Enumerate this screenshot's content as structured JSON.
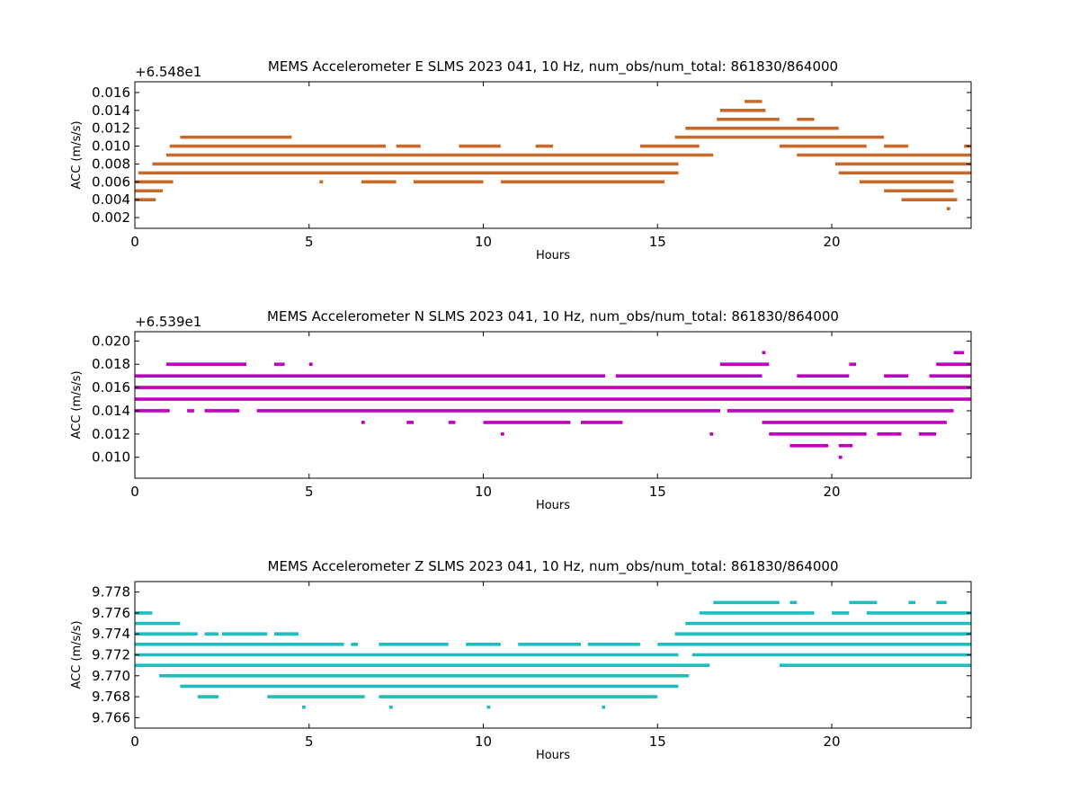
{
  "chart_data": [
    {
      "type": "scatter",
      "title": "MEMS Accelerometer E SLMS 2023 041, 10 Hz, num_obs/num_total: 861830/864000",
      "xlabel": "Hours",
      "ylabel": "ACC (m/s/s)",
      "offset_label": "+6.548e1",
      "color": "#c8692b",
      "xlim": [
        0,
        24
      ],
      "ylim": [
        0.0008,
        0.0172
      ],
      "xticks": [
        0,
        5,
        10,
        15,
        20
      ],
      "xtick_labels": [
        "0",
        "5",
        "10",
        "15",
        "20"
      ],
      "yticks": [
        0.002,
        0.004,
        0.006,
        0.008,
        0.01,
        0.012,
        0.014,
        0.016
      ],
      "ytick_labels": [
        "0.002",
        "0.004",
        "0.006",
        "0.008",
        "0.010",
        "0.012",
        "0.014",
        "0.016"
      ],
      "series": [
        {
          "y": 0.015,
          "segments": [
            [
              17.5,
              18.0
            ]
          ]
        },
        {
          "y": 0.014,
          "segments": [
            [
              16.8,
              18.1
            ]
          ]
        },
        {
          "y": 0.013,
          "segments": [
            [
              16.7,
              18.5
            ],
            [
              19.0,
              19.5
            ]
          ]
        },
        {
          "y": 0.012,
          "segments": [
            [
              15.8,
              20.2
            ]
          ]
        },
        {
          "y": 0.011,
          "segments": [
            [
              1.3,
              4.5
            ],
            [
              15.5,
              21.5
            ]
          ]
        },
        {
          "y": 0.01,
          "segments": [
            [
              1.0,
              7.2
            ],
            [
              7.5,
              8.2
            ],
            [
              9.3,
              10.5
            ],
            [
              11.5,
              12.0
            ],
            [
              14.5,
              16.2
            ],
            [
              18.5,
              21.0
            ],
            [
              21.5,
              22.2
            ],
            [
              23.8,
              24.0
            ]
          ]
        },
        {
          "y": 0.009,
          "segments": [
            [
              0.9,
              16.6
            ],
            [
              19.0,
              24.0
            ]
          ]
        },
        {
          "y": 0.008,
          "segments": [
            [
              0.5,
              15.6
            ],
            [
              20.1,
              24.0
            ]
          ]
        },
        {
          "y": 0.007,
          "segments": [
            [
              0.1,
              15.6
            ],
            [
              20.2,
              24.0
            ]
          ]
        },
        {
          "y": 0.006,
          "segments": [
            [
              0.0,
              1.1
            ],
            [
              5.3,
              5.4
            ],
            [
              6.5,
              7.5
            ],
            [
              8.0,
              10.0
            ],
            [
              10.5,
              15.2
            ],
            [
              20.8,
              23.5
            ]
          ]
        },
        {
          "y": 0.005,
          "segments": [
            [
              0.0,
              0.8
            ],
            [
              21.5,
              23.5
            ]
          ]
        },
        {
          "y": 0.004,
          "segments": [
            [
              0.0,
              0.6
            ],
            [
              22.0,
              23.6
            ]
          ]
        },
        {
          "y": 0.003,
          "segments": [
            [
              23.3,
              23.4
            ]
          ]
        }
      ]
    },
    {
      "type": "scatter",
      "title": "MEMS Accelerometer N SLMS 2023 041, 10 Hz, num_obs/num_total: 861830/864000",
      "xlabel": "Hours",
      "ylabel": "ACC (m/s/s)",
      "offset_label": "+6.539e1",
      "color": "#bf00bf",
      "xlim": [
        0,
        24
      ],
      "ylim": [
        0.0082,
        0.0208
      ],
      "xticks": [
        0,
        5,
        10,
        15,
        20
      ],
      "xtick_labels": [
        "0",
        "5",
        "10",
        "15",
        "20"
      ],
      "yticks": [
        0.01,
        0.012,
        0.014,
        0.016,
        0.018,
        0.02
      ],
      "ytick_labels": [
        "0.010",
        "0.012",
        "0.014",
        "0.016",
        "0.018",
        "0.020"
      ],
      "series": [
        {
          "y": 0.019,
          "segments": [
            [
              18.0,
              18.1
            ],
            [
              23.5,
              23.8
            ]
          ]
        },
        {
          "y": 0.018,
          "segments": [
            [
              0.9,
              3.2
            ],
            [
              4.0,
              4.3
            ],
            [
              5.0,
              5.1
            ],
            [
              16.8,
              18.2
            ],
            [
              20.5,
              20.7
            ],
            [
              23.0,
              24.0
            ]
          ]
        },
        {
          "y": 0.017,
          "segments": [
            [
              0.0,
              13.5
            ],
            [
              13.8,
              18.0
            ],
            [
              19.0,
              20.5
            ],
            [
              21.5,
              22.2
            ],
            [
              22.8,
              24.0
            ]
          ]
        },
        {
          "y": 0.016,
          "segments": [
            [
              0.0,
              24.0
            ]
          ]
        },
        {
          "y": 0.015,
          "segments": [
            [
              0.0,
              24.0
            ]
          ]
        },
        {
          "y": 0.014,
          "segments": [
            [
              0.0,
              1.0
            ],
            [
              1.5,
              1.7
            ],
            [
              2.0,
              3.0
            ],
            [
              3.5,
              16.8
            ],
            [
              17.0,
              23.5
            ]
          ]
        },
        {
          "y": 0.013,
          "segments": [
            [
              6.5,
              6.6
            ],
            [
              7.8,
              8.0
            ],
            [
              9.0,
              9.2
            ],
            [
              10.0,
              12.5
            ],
            [
              12.8,
              14.0
            ],
            [
              18.0,
              23.3
            ]
          ]
        },
        {
          "y": 0.012,
          "segments": [
            [
              10.5,
              10.6
            ],
            [
              16.5,
              16.6
            ],
            [
              18.2,
              21.0
            ],
            [
              21.3,
              22.0
            ],
            [
              22.5,
              23.0
            ]
          ]
        },
        {
          "y": 0.011,
          "segments": [
            [
              18.8,
              19.9
            ],
            [
              20.2,
              20.6
            ]
          ]
        },
        {
          "y": 0.01,
          "segments": [
            [
              20.2,
              20.3
            ]
          ]
        }
      ]
    },
    {
      "type": "scatter",
      "title": "MEMS Accelerometer Z SLMS 2023 041, 10 Hz, num_obs/num_total: 861830/864000",
      "xlabel": "Hours",
      "ylabel": "ACC (m/s/s)",
      "offset_label": "",
      "color": "#1fbdbd",
      "xlim": [
        0,
        24
      ],
      "ylim": [
        9.765,
        9.779
      ],
      "xticks": [
        0,
        5,
        10,
        15,
        20
      ],
      "xtick_labels": [
        "0",
        "5",
        "10",
        "15",
        "20"
      ],
      "yticks": [
        9.766,
        9.768,
        9.77,
        9.772,
        9.774,
        9.776,
        9.778
      ],
      "ytick_labels": [
        "9.766",
        "9.768",
        "9.770",
        "9.772",
        "9.774",
        "9.776",
        "9.778"
      ],
      "series": [
        {
          "y": 9.777,
          "segments": [
            [
              16.6,
              18.5
            ],
            [
              18.8,
              19.0
            ],
            [
              20.5,
              21.3
            ],
            [
              22.2,
              22.4
            ],
            [
              23.0,
              23.3
            ]
          ]
        },
        {
          "y": 9.776,
          "segments": [
            [
              0.0,
              0.5
            ],
            [
              16.2,
              19.5
            ],
            [
              20.0,
              20.5
            ],
            [
              21.0,
              24.0
            ]
          ]
        },
        {
          "y": 9.775,
          "segments": [
            [
              0.0,
              1.3
            ],
            [
              15.8,
              24.0
            ]
          ]
        },
        {
          "y": 9.774,
          "segments": [
            [
              0.0,
              1.8
            ],
            [
              2.0,
              2.4
            ],
            [
              2.5,
              3.8
            ],
            [
              4.0,
              4.7
            ],
            [
              15.5,
              24.0
            ]
          ]
        },
        {
          "y": 9.773,
          "segments": [
            [
              0.0,
              6.0
            ],
            [
              6.2,
              6.4
            ],
            [
              7.0,
              9.0
            ],
            [
              9.5,
              10.5
            ],
            [
              11.0,
              12.8
            ],
            [
              13.0,
              14.5
            ],
            [
              15.0,
              24.0
            ]
          ]
        },
        {
          "y": 9.772,
          "segments": [
            [
              0.0,
              15.6
            ],
            [
              16.0,
              24.0
            ]
          ]
        },
        {
          "y": 9.771,
          "segments": [
            [
              0.0,
              16.5
            ],
            [
              18.5,
              24.0
            ]
          ]
        },
        {
          "y": 9.77,
          "segments": [
            [
              0.7,
              15.9
            ]
          ]
        },
        {
          "y": 9.769,
          "segments": [
            [
              1.3,
              15.6
            ]
          ]
        },
        {
          "y": 9.768,
          "segments": [
            [
              1.8,
              2.4
            ],
            [
              3.8,
              6.6
            ],
            [
              7.0,
              15.0
            ]
          ]
        },
        {
          "y": 9.767,
          "segments": [
            [
              4.8,
              4.9
            ],
            [
              7.3,
              7.4
            ],
            [
              10.1,
              10.2
            ],
            [
              13.4,
              13.5
            ]
          ]
        }
      ]
    }
  ]
}
